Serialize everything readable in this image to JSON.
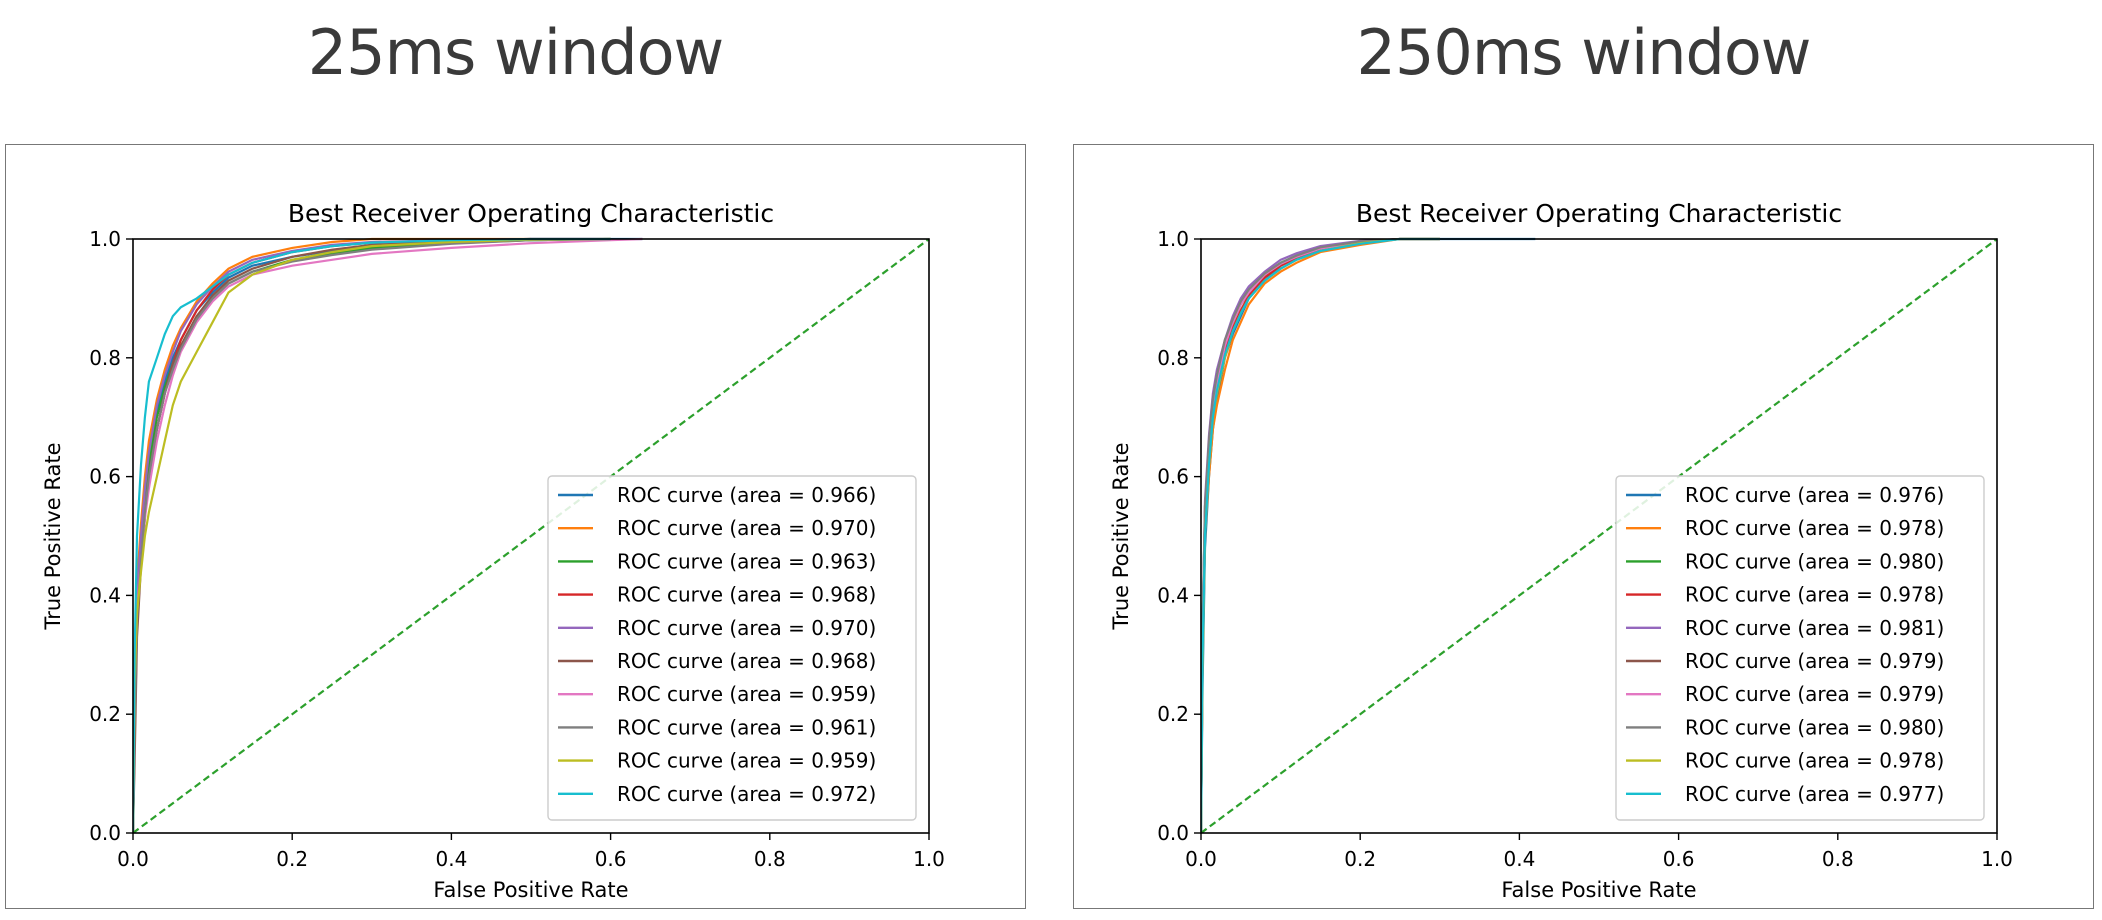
{
  "panels": [
    {
      "title": "25ms window"
    },
    {
      "title": "250ms window"
    }
  ],
  "chart_data": [
    {
      "type": "line",
      "title": "Best Receiver Operating Characteristic",
      "xlabel": "False Positive Rate",
      "ylabel": "True Positive Rate",
      "xlim": [
        0.0,
        1.0
      ],
      "ylim": [
        0.0,
        1.0
      ],
      "xticks": [
        "0.0",
        "0.2",
        "0.4",
        "0.6",
        "0.8",
        "1.0"
      ],
      "yticks": [
        "0.0",
        "0.2",
        "0.4",
        "0.6",
        "0.8",
        "1.0"
      ],
      "grid": false,
      "legend_position": "lower-right",
      "series": [
        {
          "name": "ROC curve (area = 0.966)",
          "color": "#1f77b4",
          "x": [
            0,
            0.002,
            0.005,
            0.01,
            0.015,
            0.02,
            0.03,
            0.04,
            0.05,
            0.06,
            0.08,
            0.1,
            0.12,
            0.15,
            0.2,
            0.25,
            0.3,
            0.4,
            0.5,
            0.6,
            0.64
          ],
          "y": [
            0,
            0.2,
            0.4,
            0.5,
            0.58,
            0.64,
            0.71,
            0.76,
            0.8,
            0.83,
            0.88,
            0.91,
            0.935,
            0.955,
            0.97,
            0.98,
            0.99,
            0.995,
            0.998,
            1.0,
            1.0
          ]
        },
        {
          "name": "ROC curve (area = 0.970)",
          "color": "#ff7f0e",
          "x": [
            0,
            0.002,
            0.005,
            0.01,
            0.015,
            0.02,
            0.03,
            0.04,
            0.05,
            0.06,
            0.08,
            0.1,
            0.12,
            0.15,
            0.2,
            0.25,
            0.3,
            0.4,
            0.5
          ],
          "y": [
            0,
            0.22,
            0.42,
            0.52,
            0.6,
            0.66,
            0.73,
            0.78,
            0.82,
            0.85,
            0.895,
            0.925,
            0.95,
            0.97,
            0.985,
            0.995,
            1.0,
            1.0,
            1.0
          ]
        },
        {
          "name": "ROC curve (area = 0.963)",
          "color": "#2ca02c",
          "x": [
            0,
            0.002,
            0.005,
            0.01,
            0.015,
            0.02,
            0.03,
            0.04,
            0.05,
            0.06,
            0.08,
            0.1,
            0.12,
            0.15,
            0.2,
            0.25,
            0.3,
            0.4,
            0.5,
            0.6
          ],
          "y": [
            0,
            0.18,
            0.38,
            0.48,
            0.56,
            0.62,
            0.7,
            0.75,
            0.79,
            0.82,
            0.87,
            0.9,
            0.925,
            0.945,
            0.965,
            0.975,
            0.985,
            0.993,
            0.998,
            1.0
          ]
        },
        {
          "name": "ROC curve (area = 0.968)",
          "color": "#d62728",
          "x": [
            0,
            0.002,
            0.005,
            0.01,
            0.015,
            0.02,
            0.03,
            0.04,
            0.05,
            0.06,
            0.08,
            0.1,
            0.12,
            0.15,
            0.2,
            0.25,
            0.3,
            0.4,
            0.5,
            0.6
          ],
          "y": [
            0,
            0.15,
            0.35,
            0.46,
            0.54,
            0.6,
            0.68,
            0.74,
            0.79,
            0.83,
            0.88,
            0.915,
            0.94,
            0.96,
            0.978,
            0.988,
            0.994,
            0.998,
            1.0,
            1.0
          ]
        },
        {
          "name": "ROC curve (area = 0.970)",
          "color": "#9467bd",
          "x": [
            0,
            0.002,
            0.005,
            0.01,
            0.015,
            0.02,
            0.03,
            0.04,
            0.05,
            0.06,
            0.08,
            0.1,
            0.12,
            0.15,
            0.2,
            0.25,
            0.3,
            0.4,
            0.5,
            0.6
          ],
          "y": [
            0,
            0.2,
            0.4,
            0.5,
            0.58,
            0.64,
            0.72,
            0.77,
            0.81,
            0.845,
            0.89,
            0.92,
            0.945,
            0.965,
            0.98,
            0.99,
            0.995,
            0.998,
            1.0,
            1.0
          ]
        },
        {
          "name": "ROC curve (area = 0.968)",
          "color": "#8c564b",
          "x": [
            0,
            0.002,
            0.005,
            0.01,
            0.015,
            0.02,
            0.03,
            0.04,
            0.05,
            0.06,
            0.08,
            0.1,
            0.12,
            0.15,
            0.2,
            0.25,
            0.3,
            0.4,
            0.5,
            0.6
          ],
          "y": [
            0,
            0.12,
            0.33,
            0.45,
            0.53,
            0.6,
            0.68,
            0.74,
            0.79,
            0.82,
            0.87,
            0.905,
            0.93,
            0.95,
            0.97,
            0.982,
            0.99,
            0.996,
            1.0,
            1.0
          ]
        },
        {
          "name": "ROC curve (area = 0.959)",
          "color": "#e377c2",
          "x": [
            0,
            0.002,
            0.005,
            0.01,
            0.015,
            0.02,
            0.03,
            0.04,
            0.05,
            0.06,
            0.08,
            0.1,
            0.12,
            0.15,
            0.2,
            0.25,
            0.3,
            0.4,
            0.5,
            0.6,
            0.64
          ],
          "y": [
            0,
            0.2,
            0.38,
            0.46,
            0.53,
            0.58,
            0.66,
            0.72,
            0.77,
            0.81,
            0.86,
            0.895,
            0.92,
            0.94,
            0.955,
            0.965,
            0.975,
            0.985,
            0.993,
            0.998,
            1.0
          ]
        },
        {
          "name": "ROC curve (area = 0.961)",
          "color": "#7f7f7f",
          "x": [
            0,
            0.002,
            0.005,
            0.01,
            0.015,
            0.02,
            0.03,
            0.04,
            0.05,
            0.06,
            0.08,
            0.1,
            0.12,
            0.15,
            0.2,
            0.25,
            0.3,
            0.4,
            0.5,
            0.6
          ],
          "y": [
            0,
            0.18,
            0.36,
            0.46,
            0.54,
            0.6,
            0.68,
            0.74,
            0.78,
            0.815,
            0.865,
            0.9,
            0.925,
            0.945,
            0.962,
            0.973,
            0.982,
            0.992,
            0.998,
            1.0
          ]
        },
        {
          "name": "ROC curve (area = 0.959)",
          "color": "#bcbd22",
          "x": [
            0,
            0.002,
            0.005,
            0.01,
            0.015,
            0.02,
            0.03,
            0.04,
            0.05,
            0.06,
            0.08,
            0.1,
            0.12,
            0.15,
            0.2,
            0.25,
            0.3,
            0.4,
            0.5,
            0.6
          ],
          "y": [
            0,
            0.25,
            0.37,
            0.44,
            0.5,
            0.54,
            0.6,
            0.66,
            0.72,
            0.76,
            0.81,
            0.86,
            0.91,
            0.94,
            0.965,
            0.978,
            0.988,
            0.995,
            0.999,
            1.0
          ]
        },
        {
          "name": "ROC curve (area = 0.972)",
          "color": "#17becf",
          "x": [
            0,
            0.002,
            0.005,
            0.01,
            0.015,
            0.02,
            0.03,
            0.04,
            0.05,
            0.06,
            0.08,
            0.1,
            0.12,
            0.15,
            0.2,
            0.25,
            0.3,
            0.4,
            0.5,
            0.6
          ],
          "y": [
            0,
            0.3,
            0.5,
            0.62,
            0.7,
            0.76,
            0.8,
            0.84,
            0.87,
            0.885,
            0.9,
            0.92,
            0.94,
            0.96,
            0.978,
            0.988,
            0.994,
            0.998,
            1.0,
            1.0
          ]
        },
        {
          "color": "#2ca02c",
          "dashed": true,
          "x": [
            0,
            1
          ],
          "y": [
            0,
            1
          ]
        }
      ]
    },
    {
      "type": "line",
      "title": "Best Receiver Operating Characteristic",
      "xlabel": "False Positive Rate",
      "ylabel": "True Positive Rate",
      "xlim": [
        0.0,
        1.0
      ],
      "ylim": [
        0.0,
        1.0
      ],
      "xticks": [
        "0.0",
        "0.2",
        "0.4",
        "0.6",
        "0.8",
        "1.0"
      ],
      "yticks": [
        "0.0",
        "0.2",
        "0.4",
        "0.6",
        "0.8",
        "1.0"
      ],
      "grid": false,
      "legend_position": "lower-right",
      "series": [
        {
          "name": "ROC curve (area = 0.976)",
          "color": "#1f77b4",
          "x": [
            0,
            0.002,
            0.005,
            0.01,
            0.015,
            0.02,
            0.03,
            0.04,
            0.05,
            0.06,
            0.08,
            0.1,
            0.12,
            0.15,
            0.2,
            0.25,
            0.3,
            0.42
          ],
          "y": [
            0,
            0.25,
            0.48,
            0.6,
            0.68,
            0.73,
            0.8,
            0.84,
            0.87,
            0.9,
            0.93,
            0.955,
            0.97,
            0.985,
            0.995,
            1.0,
            1.0,
            1.0
          ]
        },
        {
          "name": "ROC curve (area = 0.978)",
          "color": "#ff7f0e",
          "x": [
            0,
            0.002,
            0.005,
            0.01,
            0.015,
            0.02,
            0.03,
            0.04,
            0.05,
            0.06,
            0.08,
            0.1,
            0.12,
            0.15,
            0.2,
            0.25,
            0.3
          ],
          "y": [
            0,
            0.3,
            0.5,
            0.6,
            0.68,
            0.72,
            0.78,
            0.83,
            0.86,
            0.89,
            0.925,
            0.945,
            0.96,
            0.978,
            0.99,
            1.0,
            1.0
          ]
        },
        {
          "name": "ROC curve (area = 0.980)",
          "color": "#2ca02c",
          "x": [
            0,
            0.002,
            0.005,
            0.01,
            0.015,
            0.02,
            0.03,
            0.04,
            0.05,
            0.06,
            0.08,
            0.1,
            0.12,
            0.15,
            0.2,
            0.25,
            0.3
          ],
          "y": [
            0,
            0.35,
            0.55,
            0.66,
            0.72,
            0.76,
            0.82,
            0.86,
            0.89,
            0.91,
            0.94,
            0.96,
            0.972,
            0.986,
            0.996,
            1.0,
            1.0
          ]
        },
        {
          "name": "ROC curve (area = 0.978)",
          "color": "#d62728",
          "x": [
            0,
            0.002,
            0.005,
            0.01,
            0.015,
            0.02,
            0.03,
            0.04,
            0.05,
            0.06,
            0.08,
            0.1,
            0.12,
            0.15,
            0.2,
            0.25,
            0.3
          ],
          "y": [
            0,
            0.3,
            0.52,
            0.64,
            0.71,
            0.75,
            0.81,
            0.85,
            0.88,
            0.905,
            0.935,
            0.955,
            0.968,
            0.982,
            0.993,
            1.0,
            1.0
          ]
        },
        {
          "name": "ROC curve (area = 0.981)",
          "color": "#9467bd",
          "x": [
            0,
            0.002,
            0.005,
            0.01,
            0.015,
            0.02,
            0.03,
            0.04,
            0.05,
            0.06,
            0.08,
            0.1,
            0.12,
            0.15,
            0.2,
            0.25,
            0.3
          ],
          "y": [
            0,
            0.35,
            0.56,
            0.67,
            0.74,
            0.78,
            0.83,
            0.87,
            0.9,
            0.92,
            0.945,
            0.965,
            0.976,
            0.988,
            0.997,
            1.0,
            1.0
          ]
        },
        {
          "name": "ROC curve (area = 0.979)",
          "color": "#8c564b",
          "x": [
            0,
            0.002,
            0.005,
            0.01,
            0.015,
            0.02,
            0.03,
            0.04,
            0.05,
            0.06,
            0.08,
            0.1,
            0.12,
            0.15,
            0.2,
            0.25,
            0.3
          ],
          "y": [
            0,
            0.32,
            0.54,
            0.66,
            0.73,
            0.77,
            0.83,
            0.86,
            0.89,
            0.91,
            0.94,
            0.958,
            0.97,
            0.984,
            0.995,
            1.0,
            1.0
          ]
        },
        {
          "name": "ROC curve (area = 0.979)",
          "color": "#e377c2",
          "x": [
            0,
            0.002,
            0.005,
            0.01,
            0.015,
            0.02,
            0.03,
            0.04,
            0.05,
            0.06,
            0.08,
            0.1,
            0.12,
            0.15,
            0.2,
            0.25,
            0.3
          ],
          "y": [
            0,
            0.33,
            0.54,
            0.65,
            0.72,
            0.76,
            0.82,
            0.86,
            0.89,
            0.91,
            0.94,
            0.958,
            0.97,
            0.984,
            0.995,
            1.0,
            1.0
          ]
        },
        {
          "name": "ROC curve (area = 0.980)",
          "color": "#7f7f7f",
          "x": [
            0,
            0.002,
            0.005,
            0.01,
            0.015,
            0.02,
            0.03,
            0.04,
            0.05,
            0.06,
            0.08,
            0.1,
            0.12,
            0.15,
            0.2,
            0.25,
            0.3
          ],
          "y": [
            0,
            0.34,
            0.55,
            0.66,
            0.73,
            0.77,
            0.83,
            0.865,
            0.895,
            0.915,
            0.942,
            0.96,
            0.972,
            0.986,
            0.996,
            1.0,
            1.0
          ]
        },
        {
          "name": "ROC curve (area = 0.978)",
          "color": "#bcbd22",
          "x": [
            0,
            0.002,
            0.005,
            0.01,
            0.015,
            0.02,
            0.03,
            0.04,
            0.05,
            0.06,
            0.08,
            0.1,
            0.12,
            0.15,
            0.2,
            0.25,
            0.3
          ],
          "y": [
            0,
            0.28,
            0.5,
            0.62,
            0.7,
            0.74,
            0.8,
            0.845,
            0.875,
            0.9,
            0.93,
            0.95,
            0.965,
            0.98,
            0.993,
            1.0,
            1.0
          ]
        },
        {
          "name": "ROC curve (area = 0.977)",
          "color": "#17becf",
          "x": [
            0,
            0.002,
            0.005,
            0.01,
            0.015,
            0.02,
            0.03,
            0.04,
            0.05,
            0.06,
            0.08,
            0.1,
            0.12,
            0.15,
            0.2,
            0.25,
            0.3
          ],
          "y": [
            0,
            0.3,
            0.5,
            0.62,
            0.7,
            0.745,
            0.805,
            0.845,
            0.875,
            0.9,
            0.93,
            0.95,
            0.965,
            0.98,
            0.992,
            1.0,
            1.0
          ]
        },
        {
          "color": "#2ca02c",
          "dashed": true,
          "x": [
            0,
            1
          ],
          "y": [
            0,
            1
          ]
        }
      ]
    }
  ]
}
